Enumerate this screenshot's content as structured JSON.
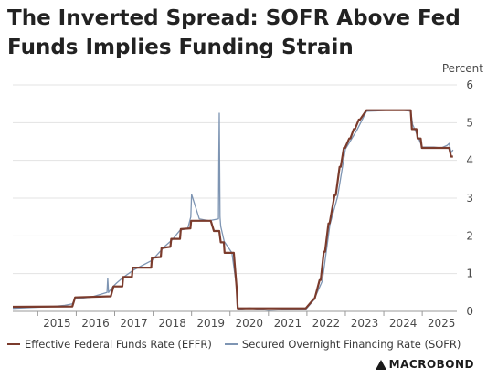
{
  "chart_data": {
    "type": "line",
    "title": "The Inverted Spread: SOFR Above Fed Funds Implies Funding Strain",
    "ylabel": "Percent",
    "ylim": [
      0,
      6
    ],
    "yticks": [
      0,
      1,
      2,
      3,
      4,
      5,
      6
    ],
    "xlim": [
      2014.35,
      2025.9
    ],
    "xticks": [
      "2015",
      "2016",
      "2017",
      "2018",
      "2019",
      "2020",
      "2021",
      "2022",
      "2023",
      "2024",
      "2025"
    ],
    "grid": "horizontal",
    "legend_position": "bottom",
    "series": [
      {
        "name": "Effective Federal Funds Rate (EFFR)",
        "color": "#7b3b2c",
        "x": [
          2014.35,
          2015.9,
          2015.97,
          2016.9,
          2016.97,
          2017.2,
          2017.22,
          2017.45,
          2017.47,
          2017.95,
          2017.97,
          2018.2,
          2018.22,
          2018.45,
          2018.47,
          2018.7,
          2018.72,
          2018.97,
          2018.99,
          2019.5,
          2019.58,
          2019.72,
          2019.76,
          2019.84,
          2019.86,
          2020.1,
          2020.17,
          2020.2,
          2021.97,
          2022.18,
          2022.2,
          2022.33,
          2022.36,
          2022.44,
          2022.47,
          2022.56,
          2022.59,
          2022.72,
          2022.75,
          2022.85,
          2022.88,
          2022.96,
          2022.99,
          2023.1,
          2023.13,
          2023.22,
          2023.25,
          2023.35,
          2023.38,
          2023.55,
          2023.58,
          2024.7,
          2024.73,
          2024.85,
          2024.88,
          2024.96,
          2024.99,
          2025.7,
          2025.75,
          2025.8
        ],
        "y": [
          0.12,
          0.13,
          0.37,
          0.4,
          0.66,
          0.66,
          0.91,
          0.91,
          1.16,
          1.16,
          1.42,
          1.44,
          1.68,
          1.71,
          1.92,
          1.92,
          2.18,
          2.2,
          2.4,
          2.4,
          2.13,
          2.13,
          1.83,
          1.83,
          1.55,
          1.55,
          0.65,
          0.08,
          0.08,
          0.33,
          0.33,
          0.83,
          0.83,
          1.58,
          1.58,
          2.33,
          2.33,
          3.08,
          3.08,
          3.83,
          3.83,
          4.33,
          4.33,
          4.58,
          4.58,
          4.83,
          4.83,
          5.08,
          5.08,
          5.33,
          5.33,
          5.33,
          4.83,
          4.83,
          4.58,
          4.58,
          4.33,
          4.33,
          4.1,
          4.1
        ]
      },
      {
        "name": "Secured Overnight Financing Rate (SOFR)",
        "color": "#7e95b3",
        "x": [
          2014.35,
          2014.8,
          2015.3,
          2015.7,
          2015.9,
          2015.97,
          2016.4,
          2016.8,
          2016.82,
          2016.84,
          2016.95,
          2017.05,
          2017.22,
          2017.5,
          2017.97,
          2018.3,
          2018.5,
          2018.7,
          2018.9,
          2018.98,
          2019.0,
          2019.2,
          2019.45,
          2019.7,
          2019.71,
          2019.72,
          2019.74,
          2019.76,
          2019.85,
          2020.05,
          2020.17,
          2020.19,
          2020.22,
          2020.5,
          2021.0,
          2021.5,
          2021.97,
          2022.18,
          2022.4,
          2022.6,
          2022.8,
          2023.0,
          2023.3,
          2023.55,
          2023.8,
          2024.1,
          2024.5,
          2024.7,
          2024.75,
          2024.9,
          2025.0,
          2025.3,
          2025.5,
          2025.65,
          2025.7,
          2025.75,
          2025.8
        ],
        "y": [
          0.08,
          0.1,
          0.12,
          0.16,
          0.2,
          0.33,
          0.38,
          0.5,
          0.88,
          0.5,
          0.65,
          0.75,
          0.9,
          1.1,
          1.35,
          1.72,
          1.9,
          2.15,
          2.2,
          2.5,
          3.1,
          2.45,
          2.4,
          2.45,
          4.0,
          5.25,
          2.5,
          2.25,
          1.85,
          1.55,
          0.65,
          0.1,
          0.05,
          0.09,
          0.03,
          0.05,
          0.05,
          0.3,
          0.8,
          2.3,
          3.05,
          4.3,
          4.8,
          5.3,
          5.31,
          5.33,
          5.33,
          5.3,
          4.95,
          4.6,
          4.35,
          4.35,
          4.33,
          4.4,
          4.45,
          4.2,
          4.28
        ]
      }
    ]
  },
  "legend": {
    "effr_label": "Effective Federal Funds Rate (EFFR)",
    "sofr_label": "Secured Overnight Financing Rate (SOFR)"
  },
  "colors": {
    "effr": "#7b3b2c",
    "sofr": "#7e95b3",
    "grid": "#e3e3e3",
    "axis": "#9a9a9a"
  },
  "branding": {
    "logo_text": "MACROBOND"
  }
}
